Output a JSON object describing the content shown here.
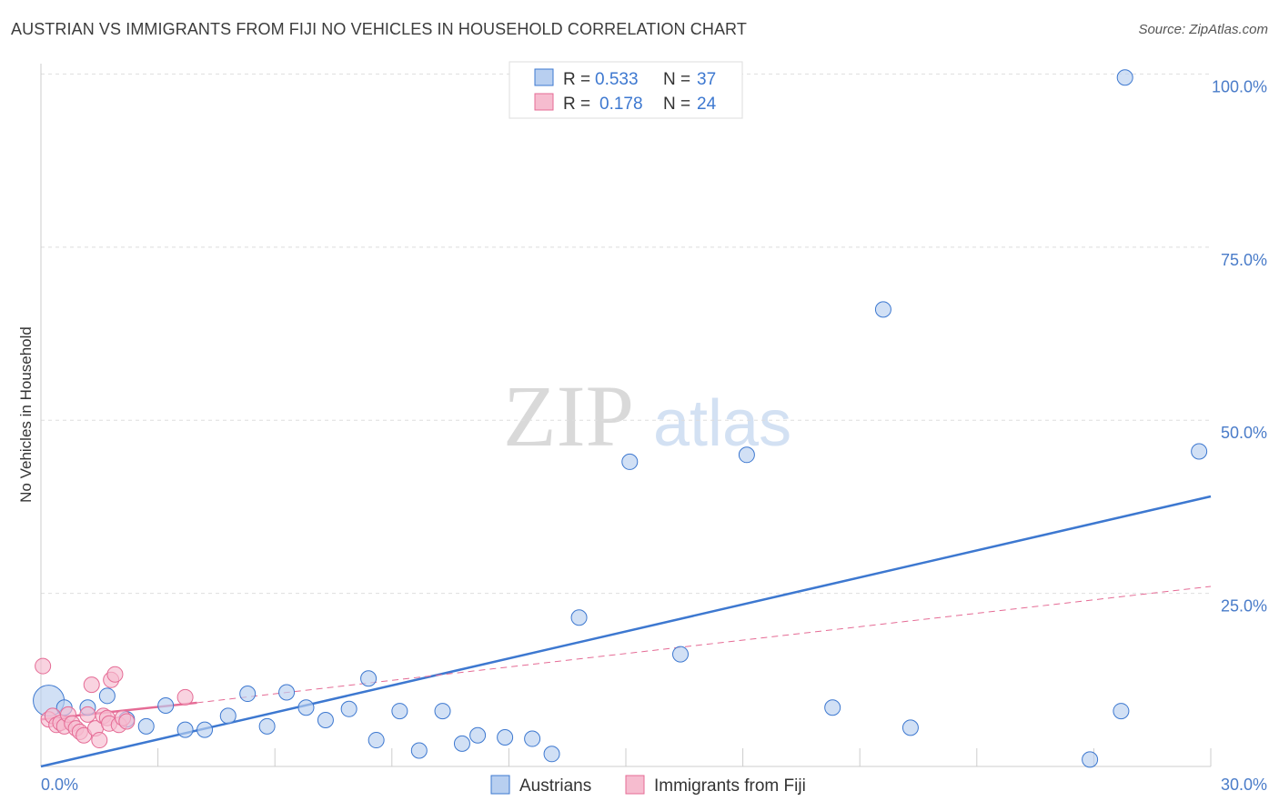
{
  "title": "AUSTRIAN VS IMMIGRANTS FROM FIJI NO VEHICLES IN HOUSEHOLD CORRELATION CHART",
  "source": "Source: ZipAtlas.com",
  "watermark": {
    "zip": "ZIP",
    "atlas": "atlas"
  },
  "colors": {
    "blue": "#3d78d0",
    "blue_fill": "#b8cff0",
    "pink": "#e56b95",
    "pink_fill": "#f6bccf",
    "tick": "#4a7cc9"
  },
  "legend": {
    "rows": [
      {
        "r_label": "R =",
        "r_value": "0.533",
        "n_label": "N =",
        "n_value": "37"
      },
      {
        "r_label": "R =",
        "r_value": "0.178",
        "n_label": "N =",
        "n_value": "24"
      }
    ]
  },
  "chart_data": {
    "type": "scatter",
    "title": "AUSTRIAN VS IMMIGRANTS FROM FIJI NO VEHICLES IN HOUSEHOLD CORRELATION CHART",
    "xlabel": "",
    "ylabel": "No Vehicles in Household",
    "xlim": [
      0,
      30
    ],
    "ylim": [
      0,
      101.5
    ],
    "x_tick_labels": [
      "0.0%",
      "30.0%"
    ],
    "y_ticks": [
      25,
      50,
      75,
      100
    ],
    "y_tick_labels": [
      "25.0%",
      "50.0%",
      "75.0%",
      "100.0%"
    ],
    "grid": true,
    "legend_position": "bottom",
    "series": [
      {
        "name": "Austrians",
        "color": "#3d78d0",
        "points": [
          {
            "x": 0.2,
            "y": 9.5,
            "big": true
          },
          {
            "x": 0.6,
            "y": 8.5
          },
          {
            "x": 1.2,
            "y": 8.5
          },
          {
            "x": 1.7,
            "y": 10.2
          },
          {
            "x": 2.2,
            "y": 6.8
          },
          {
            "x": 2.7,
            "y": 5.8
          },
          {
            "x": 3.2,
            "y": 8.8
          },
          {
            "x": 3.7,
            "y": 5.3
          },
          {
            "x": 4.2,
            "y": 5.3
          },
          {
            "x": 4.8,
            "y": 7.3
          },
          {
            "x": 5.3,
            "y": 10.5
          },
          {
            "x": 5.8,
            "y": 5.8
          },
          {
            "x": 6.3,
            "y": 10.7
          },
          {
            "x": 6.8,
            "y": 8.5
          },
          {
            "x": 7.3,
            "y": 6.7
          },
          {
            "x": 7.9,
            "y": 8.3
          },
          {
            "x": 8.4,
            "y": 12.7
          },
          {
            "x": 8.6,
            "y": 3.8
          },
          {
            "x": 9.2,
            "y": 8.0
          },
          {
            "x": 9.7,
            "y": 2.3
          },
          {
            "x": 10.3,
            "y": 8.0
          },
          {
            "x": 10.8,
            "y": 3.3
          },
          {
            "x": 11.2,
            "y": 4.5
          },
          {
            "x": 11.9,
            "y": 4.2
          },
          {
            "x": 12.6,
            "y": 4.0
          },
          {
            "x": 13.1,
            "y": 1.8
          },
          {
            "x": 13.8,
            "y": 21.5
          },
          {
            "x": 15.1,
            "y": 44.0
          },
          {
            "x": 16.4,
            "y": 16.2
          },
          {
            "x": 18.1,
            "y": 45.0
          },
          {
            "x": 20.3,
            "y": 8.5
          },
          {
            "x": 21.6,
            "y": 66.0
          },
          {
            "x": 22.3,
            "y": 5.6
          },
          {
            "x": 26.9,
            "y": 1.0
          },
          {
            "x": 27.7,
            "y": 8.0
          },
          {
            "x": 27.8,
            "y": 99.5
          },
          {
            "x": 29.7,
            "y": 45.5
          }
        ],
        "trend": {
          "x": [
            0,
            30
          ],
          "y": [
            0,
            39
          ]
        }
      },
      {
        "name": "Immigrants from Fiji",
        "color": "#e56b95",
        "points": [
          {
            "x": 0.05,
            "y": 14.5
          },
          {
            "x": 0.2,
            "y": 6.8
          },
          {
            "x": 0.3,
            "y": 7.3
          },
          {
            "x": 0.4,
            "y": 6.0
          },
          {
            "x": 0.5,
            "y": 6.3
          },
          {
            "x": 0.6,
            "y": 5.8
          },
          {
            "x": 0.7,
            "y": 7.5
          },
          {
            "x": 0.8,
            "y": 6.2
          },
          {
            "x": 0.9,
            "y": 5.5
          },
          {
            "x": 1.0,
            "y": 5.0
          },
          {
            "x": 1.1,
            "y": 4.5
          },
          {
            "x": 1.2,
            "y": 7.5
          },
          {
            "x": 1.3,
            "y": 11.8
          },
          {
            "x": 1.4,
            "y": 5.5
          },
          {
            "x": 1.5,
            "y": 3.8
          },
          {
            "x": 1.6,
            "y": 7.3
          },
          {
            "x": 1.7,
            "y": 7.0
          },
          {
            "x": 1.75,
            "y": 6.2
          },
          {
            "x": 1.8,
            "y": 12.5
          },
          {
            "x": 1.9,
            "y": 13.3
          },
          {
            "x": 2.0,
            "y": 6.0
          },
          {
            "x": 2.1,
            "y": 7.0
          },
          {
            "x": 2.2,
            "y": 6.5
          },
          {
            "x": 3.7,
            "y": 10.0
          }
        ],
        "trend": {
          "x": [
            0,
            4.0
          ],
          "y": [
            6.8,
            9.2
          ]
        },
        "trend_dashed": {
          "x": [
            4.0,
            30
          ],
          "y": [
            9.2,
            26.0
          ]
        }
      }
    ]
  }
}
